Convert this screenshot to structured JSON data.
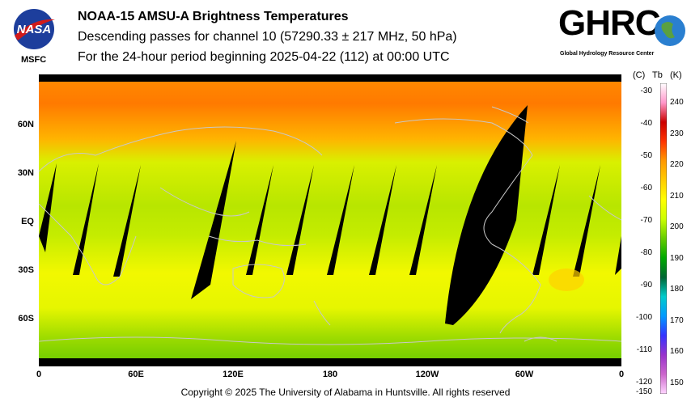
{
  "header": {
    "title": "NOAA-15 AMSU-A Brightness Temperatures",
    "subtitle": "Descending passes for channel 10 (57290.33 ± 217 MHz, 50 hPa)",
    "period": "For the 24-hour period beginning 2025-04-22 (112) at 00:00 UTC"
  },
  "logos": {
    "nasa_label": "MSFC",
    "nasa_text": "NASA",
    "ghrc_text": "GHRC",
    "ghrc_subtitle": "Global Hydrology Resource Center"
  },
  "map": {
    "lat_labels": [
      "60N",
      "30N",
      "EQ",
      "30S",
      "60S"
    ],
    "lon_labels": [
      "0",
      "60E",
      "120E",
      "180",
      "120W",
      "60W",
      "0"
    ]
  },
  "colorbar": {
    "unit_c": "(C)",
    "unit_tb": "Tb",
    "unit_k": "(K)",
    "celsius_ticks": [
      "-30",
      "-40",
      "-50",
      "-60",
      "-70",
      "-80",
      "-90",
      "-100",
      "-110",
      "-120",
      "-150"
    ],
    "kelvin_ticks": [
      "240",
      "230",
      "220",
      "210",
      "200",
      "190",
      "180",
      "170",
      "160",
      "150"
    ],
    "colors": [
      "#ffd6ff",
      "#cc66cc",
      "#9933cc",
      "#3333ff",
      "#0099ff",
      "#00cccc",
      "#006633",
      "#00aa00",
      "#66cc00",
      "#ccff00",
      "#ffff00",
      "#ffcc00",
      "#ff9900",
      "#ff3300",
      "#cc0000",
      "#ff99cc",
      "#ffffff"
    ]
  },
  "footer": {
    "copyright": "Copyright © 2025 The University of Alabama in Huntsville.  All rights reserved"
  }
}
